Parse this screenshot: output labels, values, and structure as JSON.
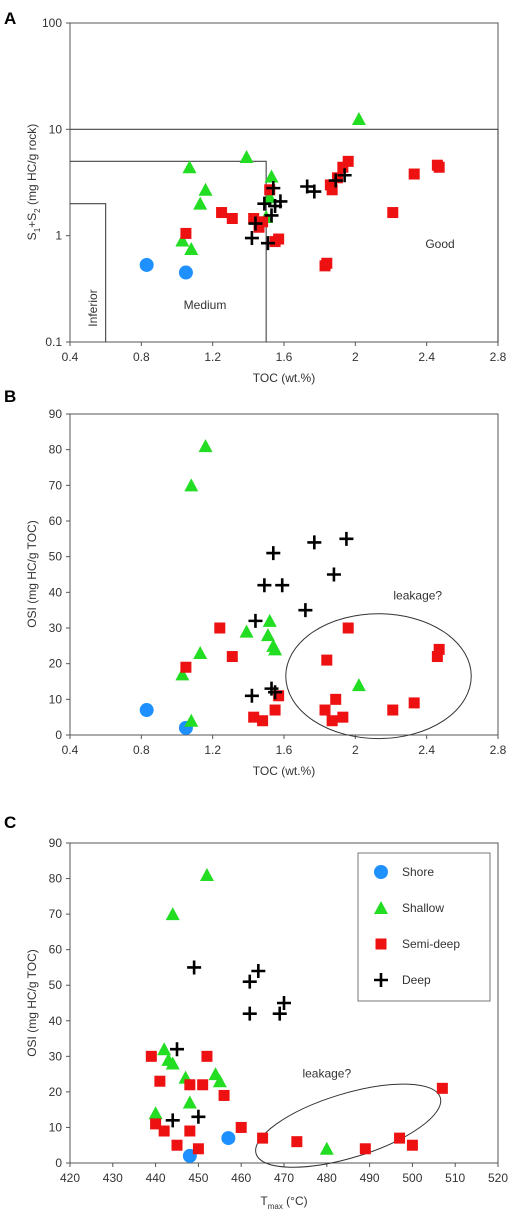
{
  "series_style": {
    "Shore": {
      "marker": "circle",
      "color": "#1e90ff"
    },
    "Shallow": {
      "marker": "triangle",
      "color": "#22dd22"
    },
    "Semi-deep": {
      "marker": "square",
      "color": "#ee1111"
    },
    "Deep": {
      "marker": "plus",
      "color": "#000000"
    }
  },
  "chart_data": [
    {
      "panel": "A",
      "type": "scatter",
      "xlabel": "TOC (wt.%)",
      "ylabel": "S1+S2 (mg HC/g rock)",
      "ylabel_parts": {
        "s": "S",
        "sub1": "1",
        "plus": "+S",
        "sub2": "2",
        "rest": " (mg HC/g rock)"
      },
      "xlim": [
        0.4,
        2.8
      ],
      "ylim": [
        0.1,
        100
      ],
      "ylog": true,
      "xticks": [
        "0.4",
        "0.8",
        "1.2",
        "1.6",
        "2",
        "2.4",
        "2.8"
      ],
      "yticks": [
        "0.1",
        "1",
        "10",
        "100"
      ],
      "xtick_values": [
        0.4,
        0.8,
        1.2,
        1.6,
        2.0,
        2.4,
        2.8
      ],
      "ytick_values": [
        0.1,
        1,
        10,
        100
      ],
      "regions": [
        {
          "label": "Inferior",
          "x_max": 0.6,
          "y_max": 2
        },
        {
          "label": "Medium",
          "x_max": 1.5,
          "y_max": 5
        },
        {
          "label": "Good",
          "x_max": 2.8,
          "y_max": 10
        }
      ],
      "series": [
        {
          "name": "Shore",
          "x": [
            0.83,
            1.05
          ],
          "y": [
            0.53,
            0.45
          ]
        },
        {
          "name": "Shallow",
          "x": [
            1.03,
            1.08,
            1.07,
            1.13,
            1.16,
            1.39,
            1.5,
            1.52,
            1.53,
            2.02
          ],
          "y": [
            0.9,
            0.75,
            4.4,
            2.0,
            2.7,
            5.5,
            1.5,
            2.3,
            3.6,
            12.5
          ]
        },
        {
          "name": "Semi-deep",
          "x": [
            1.05,
            1.25,
            1.31,
            1.43,
            1.46,
            1.48,
            1.52,
            1.55,
            1.57,
            1.83,
            1.84,
            1.86,
            1.87,
            1.9,
            1.93,
            1.96,
            2.21,
            2.33,
            2.46,
            2.47
          ],
          "y": [
            1.05,
            1.65,
            1.45,
            1.45,
            1.2,
            1.35,
            2.7,
            0.88,
            0.93,
            0.52,
            0.55,
            3.0,
            2.7,
            3.5,
            4.4,
            5.0,
            1.65,
            3.8,
            4.6,
            4.4
          ]
        },
        {
          "name": "Deep",
          "x": [
            1.42,
            1.44,
            1.49,
            1.51,
            1.53,
            1.54,
            1.55,
            1.58,
            1.73,
            1.77,
            1.89,
            1.94
          ],
          "y": [
            0.95,
            1.3,
            2.0,
            0.85,
            1.55,
            2.8,
            1.9,
            2.1,
            2.9,
            2.6,
            3.3,
            3.7
          ]
        }
      ]
    },
    {
      "panel": "B",
      "type": "scatter",
      "xlabel": "TOC (wt.%)",
      "ylabel": "OSI (mg HC/g TOC)",
      "xlim": [
        0.4,
        2.8
      ],
      "ylim": [
        0,
        90
      ],
      "xticks": [
        "0.4",
        "0.8",
        "1.2",
        "1.6",
        "2",
        "2.4",
        "2.8"
      ],
      "yticks": [
        "0",
        "10",
        "20",
        "30",
        "40",
        "50",
        "60",
        "70",
        "80",
        "90"
      ],
      "xtick_values": [
        0.4,
        0.8,
        1.2,
        1.6,
        2.0,
        2.4,
        2.8
      ],
      "ytick_values": [
        0,
        10,
        20,
        30,
        40,
        50,
        60,
        70,
        80,
        90
      ],
      "annotation": {
        "text": "leakage?",
        "x": 2.35,
        "y": 38,
        "ellipse": {
          "cx": 2.13,
          "cy": 16.5,
          "rx": 0.52,
          "ry": 17.5
        }
      },
      "series": [
        {
          "name": "Shore",
          "x": [
            0.83,
            1.05
          ],
          "y": [
            7,
            2
          ]
        },
        {
          "name": "Shallow",
          "x": [
            1.03,
            1.08,
            1.08,
            1.13,
            1.16,
            1.39,
            1.51,
            1.52,
            1.54,
            1.55,
            2.02
          ],
          "y": [
            17,
            4,
            70,
            23,
            81,
            29,
            28,
            32,
            25,
            24,
            14
          ]
        },
        {
          "name": "Semi-deep",
          "x": [
            1.05,
            1.24,
            1.31,
            1.43,
            1.48,
            1.55,
            1.57,
            1.83,
            1.84,
            1.87,
            1.89,
            1.93,
            1.96,
            2.21,
            2.33,
            2.46,
            2.47
          ],
          "y": [
            19,
            30,
            22,
            5,
            4,
            7,
            11,
            7,
            21,
            4,
            10,
            5,
            30,
            7,
            9,
            22,
            24
          ]
        },
        {
          "name": "Deep",
          "x": [
            1.42,
            1.44,
            1.49,
            1.53,
            1.54,
            1.55,
            1.59,
            1.72,
            1.77,
            1.88,
            1.95
          ],
          "y": [
            11,
            32,
            42,
            13,
            51,
            12,
            42,
            35,
            54,
            45,
            55
          ]
        }
      ]
    },
    {
      "panel": "C",
      "type": "scatter",
      "xlabel": "Tmax (°C)",
      "xlabel_parts": {
        "t": "T",
        "sub": "max",
        "rest": " (°C)"
      },
      "ylabel": "OSI (mg HC/g TOC)",
      "xlim": [
        420,
        520
      ],
      "ylim": [
        0,
        90
      ],
      "xticks": [
        "420",
        "430",
        "440",
        "450",
        "460",
        "470",
        "480",
        "490",
        "500",
        "510",
        "520"
      ],
      "yticks": [
        "0",
        "10",
        "20",
        "30",
        "40",
        "50",
        "60",
        "70",
        "80",
        "90"
      ],
      "xtick_values": [
        420,
        430,
        440,
        450,
        460,
        470,
        480,
        490,
        500,
        510,
        520
      ],
      "ytick_values": [
        0,
        10,
        20,
        30,
        40,
        50,
        60,
        70,
        80,
        90
      ],
      "annotation": {
        "text": "leakage?",
        "x": 480,
        "y": 24,
        "ellipse": {
          "cx": 485,
          "cy": 10.5,
          "rx": 22.5,
          "ry": 9,
          "rotate": -17
        }
      },
      "legend": {
        "placement": "top-right",
        "entries": [
          "Shore",
          "Shallow",
          "Semi-deep",
          "Deep"
        ]
      },
      "series": [
        {
          "name": "Shore",
          "x": [
            448,
            457
          ],
          "y": [
            2,
            7
          ]
        },
        {
          "name": "Shallow",
          "x": [
            440,
            442,
            443,
            444,
            444,
            447,
            448,
            452,
            454,
            455,
            480
          ],
          "y": [
            14,
            32,
            29,
            70,
            28,
            24,
            17,
            81,
            25,
            23,
            4
          ]
        },
        {
          "name": "Semi-deep",
          "x": [
            439,
            440,
            441,
            442,
            445,
            448,
            448,
            450,
            451,
            452,
            456,
            460,
            465,
            473,
            489,
            497,
            500,
            507
          ],
          "y": [
            30,
            11,
            23,
            9,
            5,
            22,
            9,
            4,
            22,
            30,
            19,
            10,
            7,
            6,
            4,
            7,
            5,
            21
          ]
        },
        {
          "name": "Deep",
          "x": [
            444,
            445,
            449,
            450,
            462,
            462,
            464,
            469,
            470
          ],
          "y": [
            12,
            32,
            55,
            13,
            51,
            42,
            54,
            42,
            45
          ]
        }
      ]
    }
  ]
}
